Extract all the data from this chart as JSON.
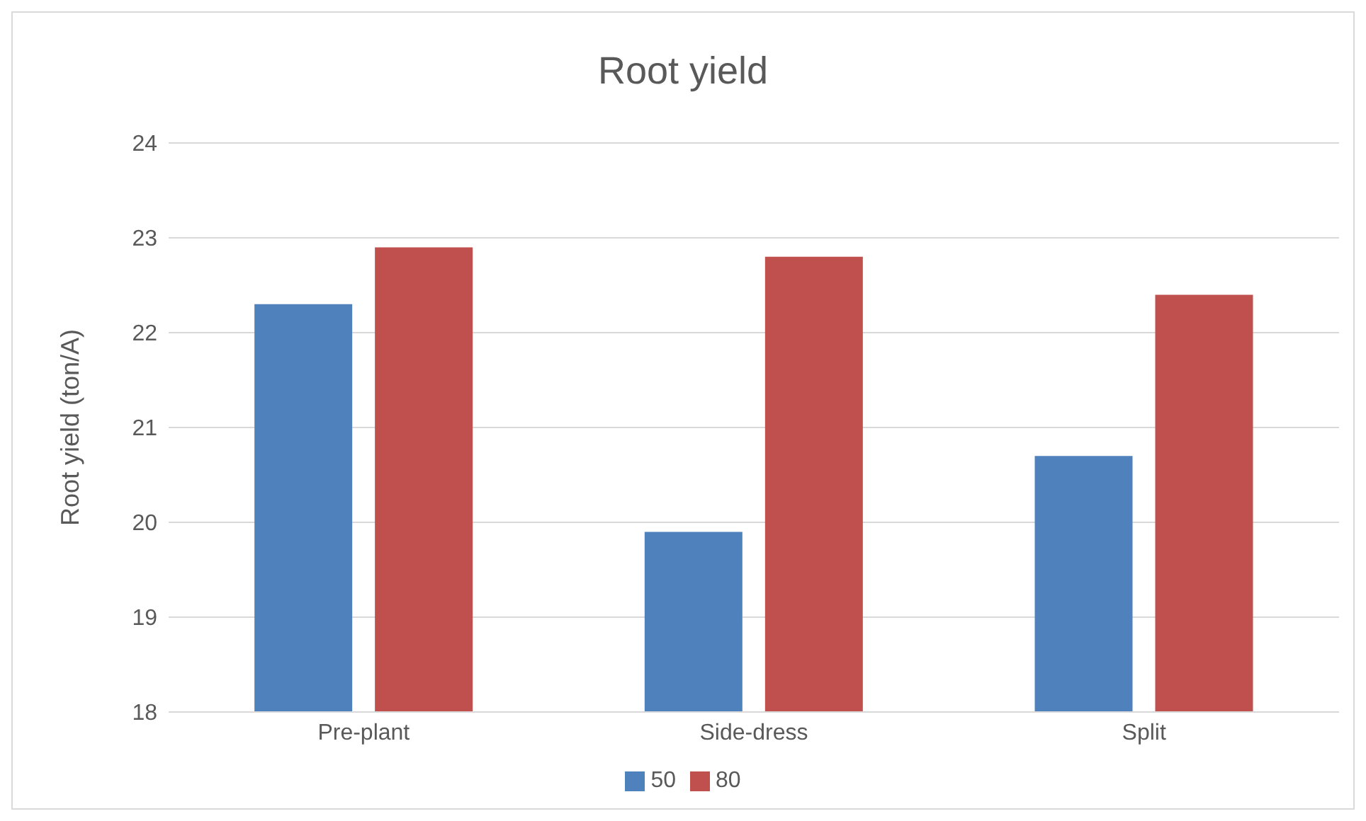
{
  "chart_data": {
    "type": "bar",
    "title": "Root yield",
    "ylabel": "Root yield (ton/A)",
    "categories": [
      "Pre-plant",
      "Side-dress",
      "Split"
    ],
    "series": [
      {
        "name": "50",
        "color": "#4f81bd",
        "values": [
          22.3,
          19.9,
          20.7
        ]
      },
      {
        "name": "80",
        "color": "#c0504d",
        "values": [
          22.9,
          22.8,
          22.4
        ]
      }
    ],
    "ylim": [
      18,
      24
    ],
    "yticks": [
      18,
      19,
      20,
      21,
      22,
      23,
      24
    ],
    "grid": "y",
    "legend": "bottom"
  }
}
